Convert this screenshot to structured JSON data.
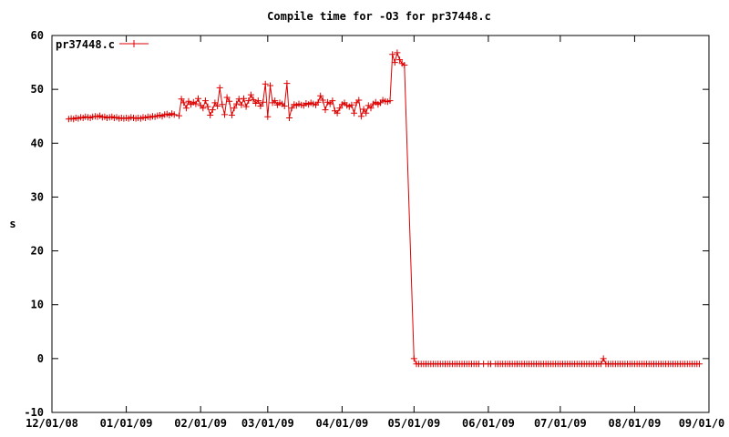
{
  "chart_data": {
    "type": "line",
    "title": "Compile time for -O3 for pr37448.c",
    "xlabel": "",
    "ylabel": "s",
    "ylim": [
      -10,
      60
    ],
    "yticks": [
      -10,
      0,
      10,
      20,
      30,
      40,
      50,
      60
    ],
    "xlim": [
      "2008-12-01",
      "2009-09-01"
    ],
    "xticks": [
      {
        "date": "2008-12-01",
        "label": "12/01/08"
      },
      {
        "date": "2009-01-01",
        "label": "01/01/09"
      },
      {
        "date": "2009-02-01",
        "label": "02/01/09"
      },
      {
        "date": "2009-03-01",
        "label": "03/01/09"
      },
      {
        "date": "2009-04-01",
        "label": "04/01/09"
      },
      {
        "date": "2009-05-01",
        "label": "05/01/09"
      },
      {
        "date": "2009-06-01",
        "label": "06/01/09"
      },
      {
        "date": "2009-07-01",
        "label": "07/01/09"
      },
      {
        "date": "2009-08-01",
        "label": "08/01/09"
      },
      {
        "date": "2009-09-01",
        "label": "09/01/0"
      }
    ],
    "legend_position": "top-left",
    "grid": false,
    "series": [
      {
        "name": "pr37448.c",
        "color": "#dd0000",
        "points": [
          [
            "2008-12-08",
            44.5
          ],
          [
            "2008-12-09",
            44.6
          ],
          [
            "2008-12-10",
            44.5
          ],
          [
            "2008-12-11",
            44.7
          ],
          [
            "2008-12-12",
            44.6
          ],
          [
            "2008-12-13",
            44.8
          ],
          [
            "2008-12-14",
            44.7
          ],
          [
            "2008-12-15",
            44.9
          ],
          [
            "2008-12-16",
            44.8
          ],
          [
            "2008-12-17",
            44.7
          ],
          [
            "2008-12-18",
            44.9
          ],
          [
            "2008-12-19",
            45.0
          ],
          [
            "2008-12-20",
            44.9
          ],
          [
            "2008-12-21",
            45.1
          ],
          [
            "2008-12-22",
            44.8
          ],
          [
            "2008-12-23",
            44.9
          ],
          [
            "2008-12-24",
            44.7
          ],
          [
            "2008-12-25",
            44.8
          ],
          [
            "2008-12-26",
            44.9
          ],
          [
            "2008-12-27",
            44.7
          ],
          [
            "2008-12-28",
            44.8
          ],
          [
            "2008-12-29",
            44.6
          ],
          [
            "2008-12-30",
            44.7
          ],
          [
            "2008-12-31",
            44.6
          ],
          [
            "2009-01-01",
            44.7
          ],
          [
            "2009-01-02",
            44.6
          ],
          [
            "2009-01-03",
            44.8
          ],
          [
            "2009-01-04",
            44.7
          ],
          [
            "2009-01-05",
            44.6
          ],
          [
            "2009-01-06",
            44.7
          ],
          [
            "2009-01-07",
            44.6
          ],
          [
            "2009-01-08",
            44.8
          ],
          [
            "2009-01-09",
            44.7
          ],
          [
            "2009-01-10",
            44.9
          ],
          [
            "2009-01-11",
            44.8
          ],
          [
            "2009-01-12",
            45.0
          ],
          [
            "2009-01-13",
            44.9
          ],
          [
            "2009-01-14",
            45.1
          ],
          [
            "2009-01-15",
            45.2
          ],
          [
            "2009-01-16",
            45.0
          ],
          [
            "2009-01-17",
            45.3
          ],
          [
            "2009-01-18",
            45.4
          ],
          [
            "2009-01-19",
            45.2
          ],
          [
            "2009-01-20",
            45.5
          ],
          [
            "2009-01-21",
            45.3
          ],
          [
            "2009-01-23",
            45.1
          ],
          [
            "2009-01-24",
            48.2
          ],
          [
            "2009-01-25",
            47.5
          ],
          [
            "2009-01-26",
            46.5
          ],
          [
            "2009-01-27",
            47.8
          ],
          [
            "2009-01-28",
            47.2
          ],
          [
            "2009-01-29",
            47.6
          ],
          [
            "2009-01-30",
            47.3
          ],
          [
            "2009-01-31",
            48.3
          ],
          [
            "2009-02-01",
            47.0
          ],
          [
            "2009-02-02",
            46.5
          ],
          [
            "2009-02-03",
            47.9
          ],
          [
            "2009-02-04",
            46.8
          ],
          [
            "2009-02-05",
            45.2
          ],
          [
            "2009-02-06",
            46.2
          ],
          [
            "2009-02-07",
            47.5
          ],
          [
            "2009-02-08",
            46.9
          ],
          [
            "2009-02-09",
            50.3
          ],
          [
            "2009-02-10",
            47.2
          ],
          [
            "2009-02-11",
            45.3
          ],
          [
            "2009-02-12",
            48.5
          ],
          [
            "2009-02-13",
            47.8
          ],
          [
            "2009-02-14",
            45.2
          ],
          [
            "2009-02-15",
            46.5
          ],
          [
            "2009-02-16",
            47.3
          ],
          [
            "2009-02-17",
            48.2
          ],
          [
            "2009-02-18",
            47.1
          ],
          [
            "2009-02-19",
            48.3
          ],
          [
            "2009-02-20",
            46.8
          ],
          [
            "2009-02-21",
            47.9
          ],
          [
            "2009-02-22",
            49.0
          ],
          [
            "2009-02-23",
            48.1
          ],
          [
            "2009-02-24",
            47.4
          ],
          [
            "2009-02-25",
            47.9
          ],
          [
            "2009-02-26",
            46.9
          ],
          [
            "2009-02-27",
            47.6
          ],
          [
            "2009-02-28",
            51.0
          ],
          [
            "2009-03-01",
            44.9
          ],
          [
            "2009-03-02",
            50.7
          ],
          [
            "2009-03-03",
            47.5
          ],
          [
            "2009-03-04",
            47.9
          ],
          [
            "2009-03-05",
            47.1
          ],
          [
            "2009-03-06",
            47.5
          ],
          [
            "2009-03-07",
            47.3
          ],
          [
            "2009-03-08",
            46.9
          ],
          [
            "2009-03-09",
            51.1
          ],
          [
            "2009-03-10",
            44.7
          ],
          [
            "2009-03-11",
            46.5
          ],
          [
            "2009-03-12",
            47.2
          ],
          [
            "2009-03-13",
            47.0
          ],
          [
            "2009-03-14",
            47.3
          ],
          [
            "2009-03-15",
            47.1
          ],
          [
            "2009-03-16",
            47.0
          ],
          [
            "2009-03-17",
            47.4
          ],
          [
            "2009-03-18",
            47.2
          ],
          [
            "2009-03-19",
            47.5
          ],
          [
            "2009-03-20",
            47.3
          ],
          [
            "2009-03-21",
            47.1
          ],
          [
            "2009-03-22",
            47.6
          ],
          [
            "2009-03-23",
            48.8
          ],
          [
            "2009-03-24",
            48.0
          ],
          [
            "2009-03-25",
            46.2
          ],
          [
            "2009-03-26",
            47.6
          ],
          [
            "2009-03-27",
            47.3
          ],
          [
            "2009-03-28",
            47.9
          ],
          [
            "2009-03-29",
            46.0
          ],
          [
            "2009-03-30",
            45.6
          ],
          [
            "2009-03-31",
            46.5
          ],
          [
            "2009-04-01",
            47.2
          ],
          [
            "2009-04-02",
            47.5
          ],
          [
            "2009-04-03",
            47.0
          ],
          [
            "2009-04-04",
            46.8
          ],
          [
            "2009-04-05",
            47.1
          ],
          [
            "2009-04-06",
            45.6
          ],
          [
            "2009-04-07",
            47.5
          ],
          [
            "2009-04-08",
            48.0
          ],
          [
            "2009-04-09",
            45.0
          ],
          [
            "2009-04-10",
            46.3
          ],
          [
            "2009-04-11",
            45.6
          ],
          [
            "2009-04-12",
            47.0
          ],
          [
            "2009-04-13",
            46.5
          ],
          [
            "2009-04-14",
            47.3
          ],
          [
            "2009-04-15",
            47.6
          ],
          [
            "2009-04-16",
            47.2
          ],
          [
            "2009-04-17",
            47.5
          ],
          [
            "2009-04-18",
            48.0
          ],
          [
            "2009-04-19",
            47.8
          ],
          [
            "2009-04-20",
            47.7
          ],
          [
            "2009-04-21",
            47.9
          ],
          [
            "2009-04-22",
            56.5
          ],
          [
            "2009-04-23",
            55.0
          ],
          [
            "2009-04-24",
            56.8
          ],
          [
            "2009-04-25",
            55.5
          ],
          [
            "2009-04-26",
            54.8
          ],
          [
            "2009-04-27",
            54.5
          ],
          [
            "2009-05-01",
            0.0
          ],
          [
            "2009-05-02",
            -1.0
          ],
          [
            "2009-05-03",
            -1.0
          ],
          [
            "2009-05-04",
            -1.0
          ],
          [
            "2009-05-05",
            -1.0
          ],
          [
            "2009-05-06",
            -1.0
          ],
          [
            "2009-05-07",
            -1.0
          ],
          [
            "2009-05-08",
            -1.0
          ],
          [
            "2009-05-09",
            -1.0
          ],
          [
            "2009-05-10",
            -1.0
          ],
          [
            "2009-05-11",
            -1.0
          ],
          [
            "2009-05-12",
            -1.0
          ],
          [
            "2009-05-13",
            -1.0
          ],
          [
            "2009-05-14",
            -1.0
          ],
          [
            "2009-05-15",
            -1.0
          ],
          [
            "2009-05-16",
            -1.0
          ],
          [
            "2009-05-17",
            -1.0
          ],
          [
            "2009-05-18",
            -1.0
          ],
          [
            "2009-05-19",
            -1.0
          ],
          [
            "2009-05-20",
            -1.0
          ],
          [
            "2009-05-21",
            -1.0
          ],
          [
            "2009-05-22",
            -1.0
          ],
          [
            "2009-05-23",
            -1.0
          ],
          [
            "2009-05-24",
            -1.0
          ],
          [
            "2009-05-25",
            -1.0
          ],
          [
            "2009-05-26",
            -1.0
          ],
          [
            "2009-05-27",
            -1.0
          ],
          [
            "2009-05-28",
            -1.0
          ],
          [
            "2009-05-30",
            -1.0
          ],
          [
            "2009-06-01",
            -1.0
          ],
          [
            "2009-06-02",
            -1.0
          ],
          [
            "2009-06-04",
            -1.0
          ],
          [
            "2009-06-05",
            -1.0
          ],
          [
            "2009-06-06",
            -1.0
          ],
          [
            "2009-06-07",
            -1.0
          ],
          [
            "2009-06-08",
            -1.0
          ],
          [
            "2009-06-09",
            -1.0
          ],
          [
            "2009-06-10",
            -1.0
          ],
          [
            "2009-06-11",
            -1.0
          ],
          [
            "2009-06-12",
            -1.0
          ],
          [
            "2009-06-13",
            -1.0
          ],
          [
            "2009-06-14",
            -1.0
          ],
          [
            "2009-06-15",
            -1.0
          ],
          [
            "2009-06-16",
            -1.0
          ],
          [
            "2009-06-17",
            -1.0
          ],
          [
            "2009-06-18",
            -1.0
          ],
          [
            "2009-06-19",
            -1.0
          ],
          [
            "2009-06-20",
            -1.0
          ],
          [
            "2009-06-21",
            -1.0
          ],
          [
            "2009-06-22",
            -1.0
          ],
          [
            "2009-06-23",
            -1.0
          ],
          [
            "2009-06-24",
            -1.0
          ],
          [
            "2009-06-25",
            -1.0
          ],
          [
            "2009-06-26",
            -1.0
          ],
          [
            "2009-06-27",
            -1.0
          ],
          [
            "2009-06-28",
            -1.0
          ],
          [
            "2009-06-29",
            -1.0
          ],
          [
            "2009-06-30",
            -1.0
          ],
          [
            "2009-07-01",
            -1.0
          ],
          [
            "2009-07-02",
            -1.0
          ],
          [
            "2009-07-03",
            -1.0
          ],
          [
            "2009-07-04",
            -1.0
          ],
          [
            "2009-07-05",
            -1.0
          ],
          [
            "2009-07-06",
            -1.0
          ],
          [
            "2009-07-07",
            -1.0
          ],
          [
            "2009-07-08",
            -1.0
          ],
          [
            "2009-07-09",
            -1.0
          ],
          [
            "2009-07-10",
            -1.0
          ],
          [
            "2009-07-11",
            -1.0
          ],
          [
            "2009-07-12",
            -1.0
          ],
          [
            "2009-07-13",
            -1.0
          ],
          [
            "2009-07-14",
            -1.0
          ],
          [
            "2009-07-15",
            -1.0
          ],
          [
            "2009-07-16",
            -1.0
          ],
          [
            "2009-07-17",
            -1.0
          ],
          [
            "2009-07-18",
            -1.0
          ],
          [
            "2009-07-19",
            0.0
          ],
          [
            "2009-07-20",
            -1.0
          ],
          [
            "2009-07-21",
            -1.0
          ],
          [
            "2009-07-22",
            -1.0
          ],
          [
            "2009-07-23",
            -1.0
          ],
          [
            "2009-07-24",
            -1.0
          ],
          [
            "2009-07-25",
            -1.0
          ],
          [
            "2009-07-26",
            -1.0
          ],
          [
            "2009-07-27",
            -1.0
          ],
          [
            "2009-07-28",
            -1.0
          ],
          [
            "2009-07-29",
            -1.0
          ],
          [
            "2009-07-30",
            -1.0
          ],
          [
            "2009-07-31",
            -1.0
          ],
          [
            "2009-08-01",
            -1.0
          ],
          [
            "2009-08-02",
            -1.0
          ],
          [
            "2009-08-03",
            -1.0
          ],
          [
            "2009-08-04",
            -1.0
          ],
          [
            "2009-08-05",
            -1.0
          ],
          [
            "2009-08-06",
            -1.0
          ],
          [
            "2009-08-07",
            -1.0
          ],
          [
            "2009-08-08",
            -1.0
          ],
          [
            "2009-08-09",
            -1.0
          ],
          [
            "2009-08-10",
            -1.0
          ],
          [
            "2009-08-11",
            -1.0
          ],
          [
            "2009-08-12",
            -1.0
          ],
          [
            "2009-08-13",
            -1.0
          ],
          [
            "2009-08-14",
            -1.0
          ],
          [
            "2009-08-15",
            -1.0
          ],
          [
            "2009-08-16",
            -1.0
          ],
          [
            "2009-08-17",
            -1.0
          ],
          [
            "2009-08-18",
            -1.0
          ],
          [
            "2009-08-19",
            -1.0
          ],
          [
            "2009-08-20",
            -1.0
          ],
          [
            "2009-08-21",
            -1.0
          ],
          [
            "2009-08-22",
            -1.0
          ],
          [
            "2009-08-23",
            -1.0
          ],
          [
            "2009-08-24",
            -1.0
          ],
          [
            "2009-08-25",
            -1.0
          ],
          [
            "2009-08-26",
            -1.0
          ],
          [
            "2009-08-27",
            -1.0
          ],
          [
            "2009-08-28",
            -1.0
          ]
        ]
      }
    ]
  }
}
